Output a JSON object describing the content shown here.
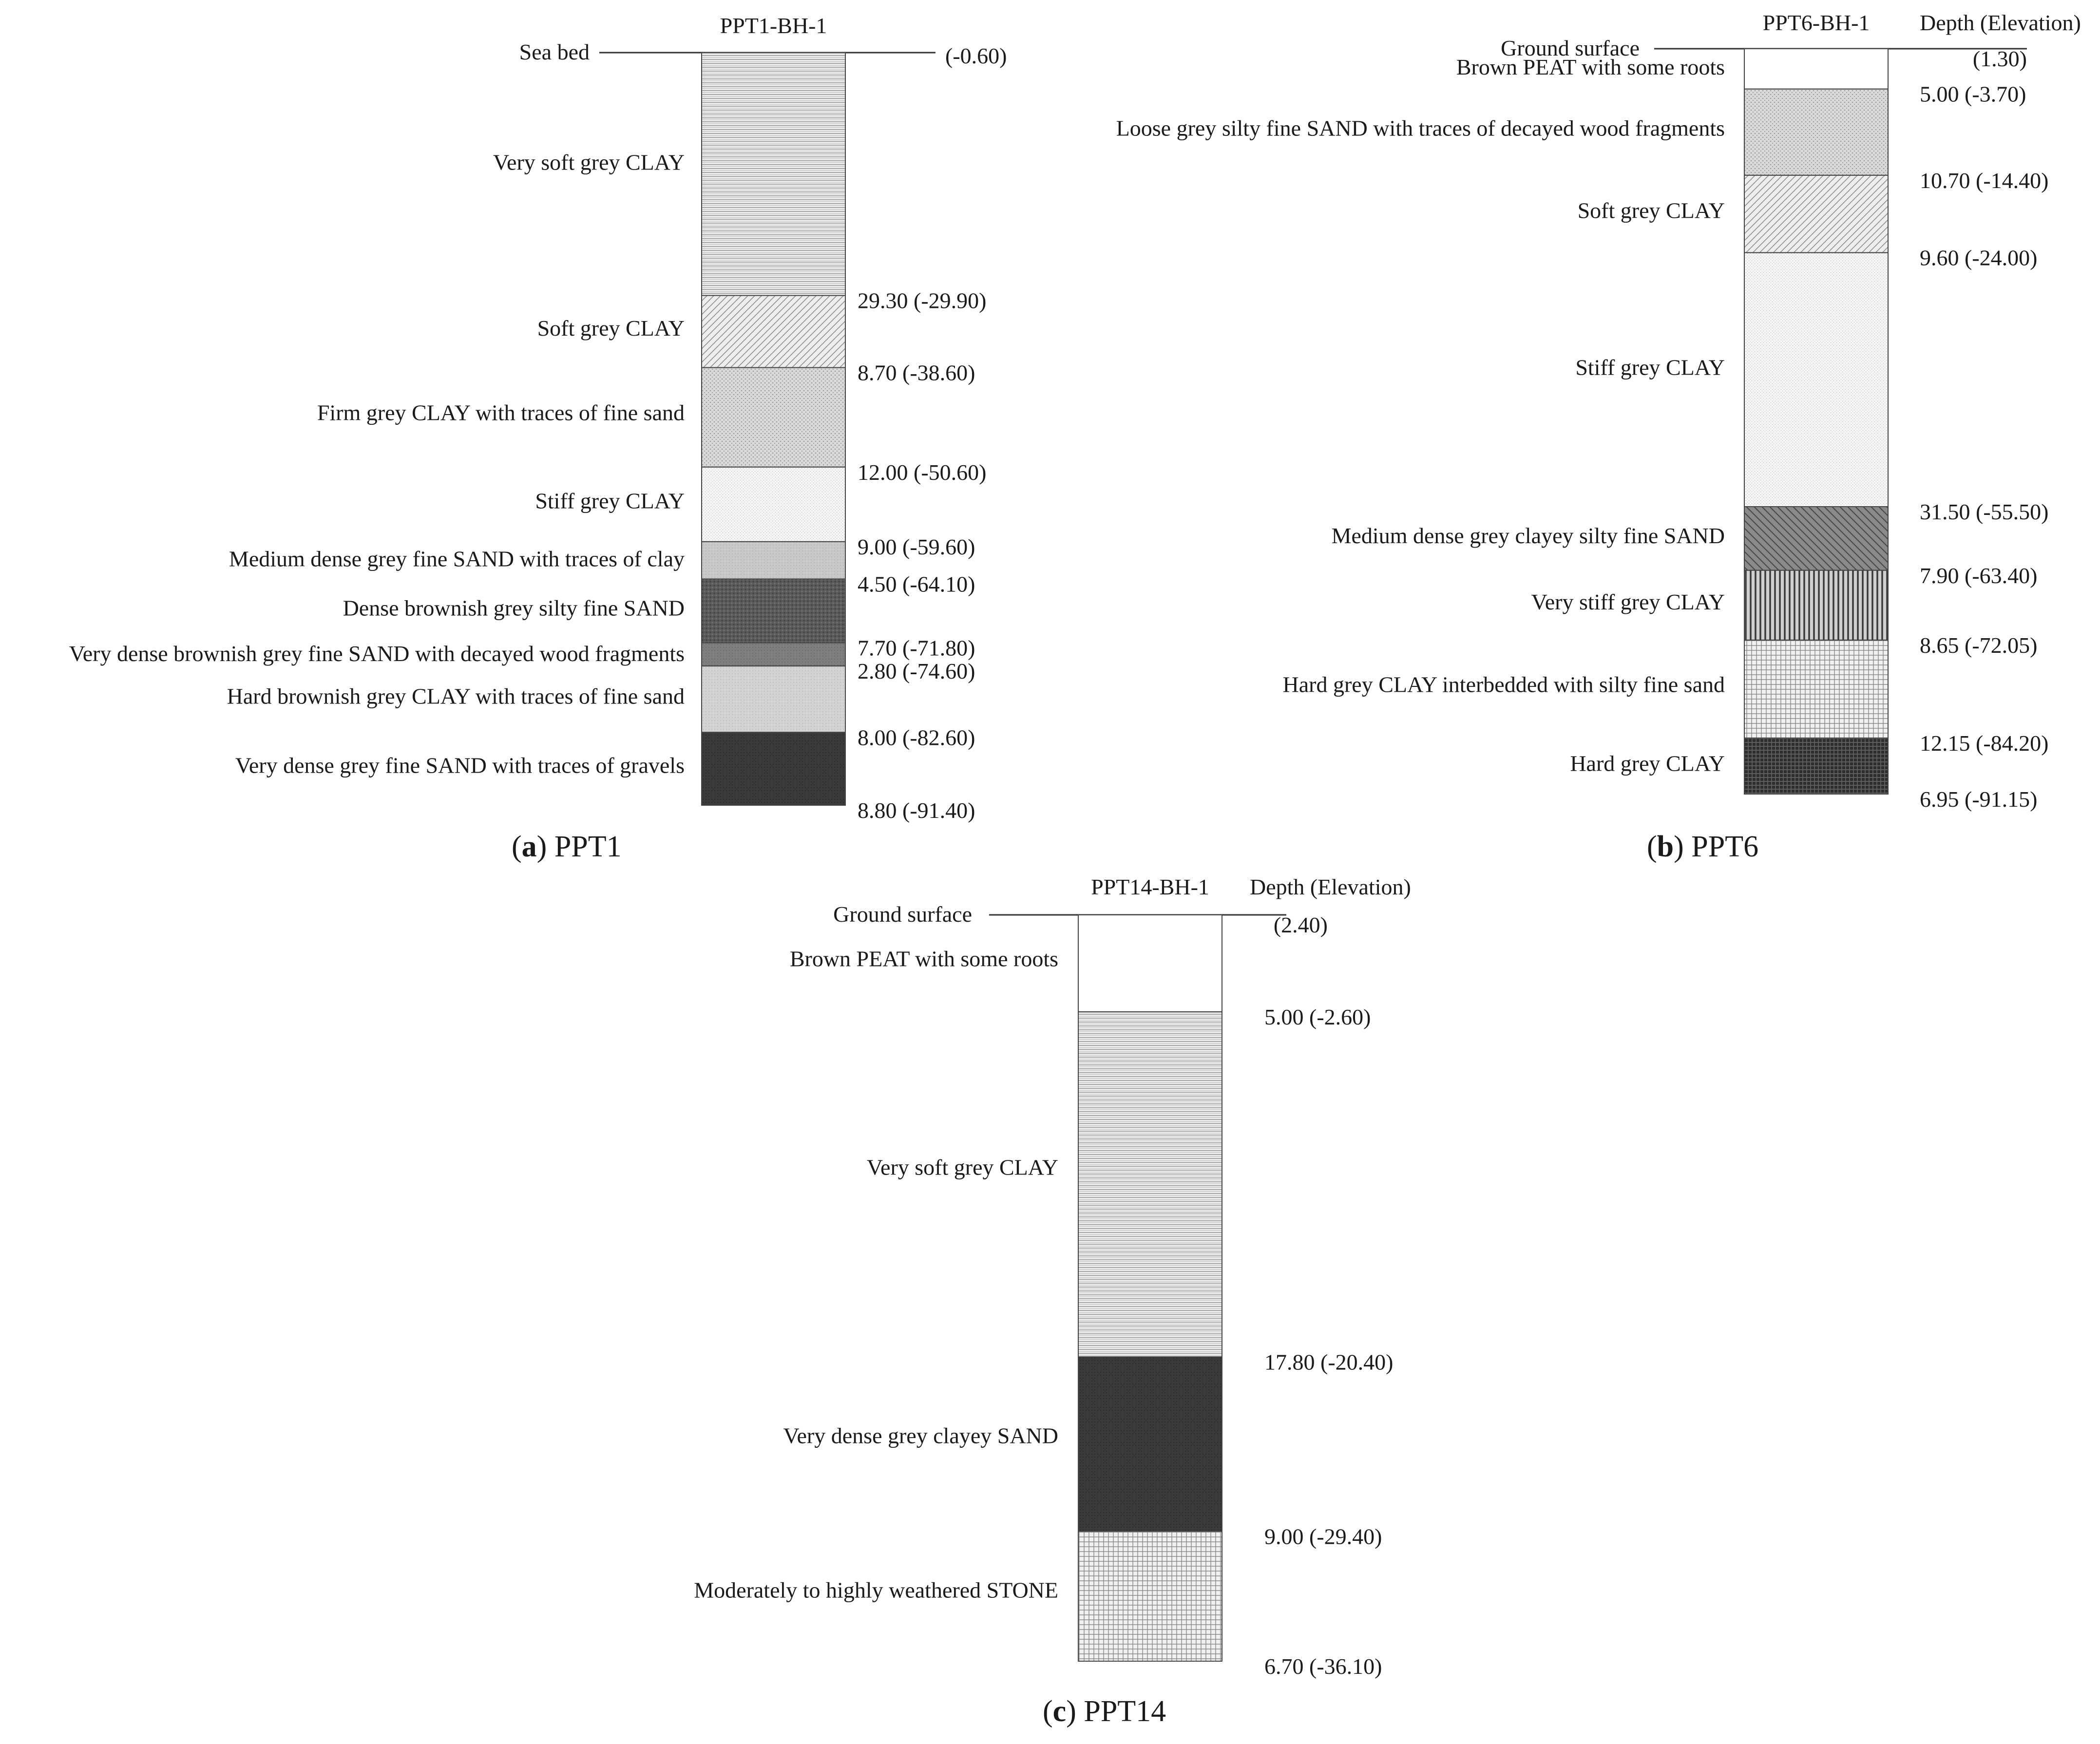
{
  "panels": [
    {
      "id": "a",
      "bh_label": "PPT1-BH-1",
      "top_label": "Sea bed",
      "top_value": "(-0.60)",
      "depth_header": "",
      "caption_letter": "a",
      "caption_text": "PPT1",
      "layers": [
        {
          "description": "Very soft grey CLAY",
          "thickness": 29.3,
          "value": "29.30 (-29.90)",
          "pattern": "hlines"
        },
        {
          "description": "Soft grey CLAY",
          "thickness": 8.7,
          "value": "8.70 (-38.60)",
          "pattern": "diag"
        },
        {
          "description": "Firm grey CLAY with traces of fine sand",
          "thickness": 12.0,
          "value": "12.00 (-50.60)",
          "pattern": "dots"
        },
        {
          "description": "Stiff grey CLAY",
          "thickness": 9.0,
          "value": "9.00 (-59.60)",
          "pattern": "finedots"
        },
        {
          "description": "Medium dense grey fine SAND with traces of clay",
          "thickness": 4.5,
          "value": "4.50 (-64.10)",
          "pattern": "lightgray"
        },
        {
          "description": "Dense brownish grey silty fine SAND",
          "thickness": 7.7,
          "value": "7.70 (-71.80)",
          "pattern": "darkdots"
        },
        {
          "description": "Very dense brownish grey fine SAND with decayed wood fragments",
          "thickness": 2.8,
          "value": "2.80 (-74.60)",
          "pattern": "midgray"
        },
        {
          "description": "Hard brownish grey CLAY with traces of fine sand",
          "thickness": 8.0,
          "value": "8.00 (-82.60)",
          "pattern": "lightgray2"
        },
        {
          "description": "Very dense grey fine SAND with traces of gravels",
          "thickness": 8.8,
          "value": "8.80 (-91.40)",
          "pattern": "dark"
        }
      ]
    },
    {
      "id": "b",
      "bh_label": "PPT6-BH-1",
      "top_label": "Ground surface",
      "top_value": "(1.30)",
      "depth_header": "Depth (Elevation)",
      "caption_letter": "b",
      "caption_text": "PPT6",
      "layers": [
        {
          "description": "Brown PEAT with some roots",
          "thickness": 5.0,
          "value": "5.00 (-3.70)",
          "pattern": "white"
        },
        {
          "description": "Loose grey silty fine SAND with traces of decayed wood fragments",
          "thickness": 10.7,
          "value": "10.70 (-14.40)",
          "pattern": "dots"
        },
        {
          "description": "Soft grey CLAY",
          "thickness": 9.6,
          "value": "9.60 (-24.00)",
          "pattern": "diag"
        },
        {
          "description": "Stiff grey CLAY",
          "thickness": 31.5,
          "value": "31.50 (-55.50)",
          "pattern": "finedots"
        },
        {
          "description": "Medium dense grey clayey silty fine SAND",
          "thickness": 7.9,
          "value": "7.90 (-63.40)",
          "pattern": "diagdark"
        },
        {
          "description": "Very stiff grey CLAY",
          "thickness": 8.65,
          "value": "8.65 (-72.05)",
          "pattern": "vlines"
        },
        {
          "description": "Hard grey CLAY interbedded with silty fine sand",
          "thickness": 12.15,
          "value": "12.15 (-84.20)",
          "pattern": "grid"
        },
        {
          "description": "Hard grey CLAY",
          "thickness": 6.95,
          "value": "6.95 (-91.15)",
          "pattern": "darkgrid"
        }
      ]
    },
    {
      "id": "c",
      "bh_label": "PPT14-BH-1",
      "top_label": "Ground surface",
      "top_value": "(2.40)",
      "depth_header": "Depth (Elevation)",
      "caption_letter": "c",
      "caption_text": "PPT14",
      "layers": [
        {
          "description": "Brown PEAT with some roots",
          "thickness": 5.0,
          "value": "5.00 (-2.60)",
          "pattern": "white"
        },
        {
          "description": "Very soft grey CLAY",
          "thickness": 17.8,
          "value": "17.80 (-20.40)",
          "pattern": "hlines"
        },
        {
          "description": "Very dense grey clayey SAND",
          "thickness": 9.0,
          "value": "9.00 (-29.40)",
          "pattern": "dark"
        },
        {
          "description": "Moderately to highly weathered STONE",
          "thickness": 6.7,
          "value": "6.70 (-36.10)",
          "pattern": "grid"
        }
      ]
    }
  ]
}
